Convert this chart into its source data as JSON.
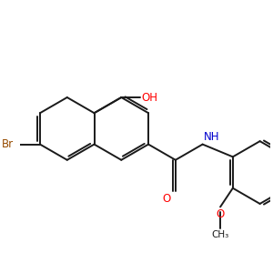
{
  "background_color": "#ffffff",
  "bond_color": "#1a1a1a",
  "br_color": "#964B00",
  "o_color": "#ff0000",
  "n_color": "#0000cd",
  "bond_lw": 1.4,
  "font_size": 8.5,
  "figsize": [
    3.0,
    3.0
  ],
  "dpi": 100,
  "xlim": [
    -1.5,
    6.5
  ],
  "ylim": [
    -3.5,
    3.0
  ]
}
